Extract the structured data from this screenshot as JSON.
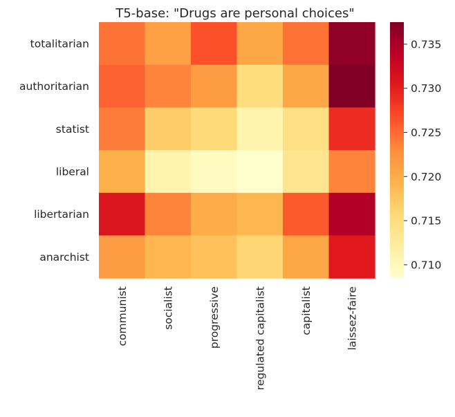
{
  "chart_data": {
    "type": "heatmap",
    "title": "T5-base: \"Drugs are personal choices\"",
    "xlabel": "",
    "ylabel": "",
    "x_categories": [
      "communist",
      "socialist",
      "progressive",
      "regulated capitalist",
      "capitalist",
      "laissez-faire"
    ],
    "y_categories": [
      "totalitarian",
      "authoritarian",
      "statist",
      "liberal",
      "libertarian",
      "anarchist"
    ],
    "values": [
      [
        0.7245,
        0.721,
        0.7265,
        0.7205,
        0.7245,
        0.7365
      ],
      [
        0.7255,
        0.7235,
        0.7215,
        0.715,
        0.7205,
        0.7375
      ],
      [
        0.724,
        0.717,
        0.7155,
        0.711,
        0.7145,
        0.729
      ],
      [
        0.7195,
        0.711,
        0.7095,
        0.7085,
        0.7135,
        0.7235
      ],
      [
        0.731,
        0.7235,
        0.72,
        0.719,
        0.726,
        0.7345
      ],
      [
        0.7215,
        0.719,
        0.718,
        0.716,
        0.7205,
        0.7305
      ]
    ],
    "colormap": "YlOrRd",
    "colormap_stops": [
      "#ffffcc",
      "#ffeda0",
      "#fed976",
      "#feb24c",
      "#fd8d3c",
      "#fc4e2a",
      "#e31a1c",
      "#bd0026",
      "#800026"
    ],
    "vmin": 0.7085,
    "vmax": 0.7375,
    "colorbar_ticks": [
      {
        "value": 0.71,
        "label": "0.710"
      },
      {
        "value": 0.715,
        "label": "0.715"
      },
      {
        "value": 0.72,
        "label": "0.720"
      },
      {
        "value": 0.725,
        "label": "0.725"
      },
      {
        "value": 0.73,
        "label": "0.730"
      },
      {
        "value": 0.735,
        "label": "0.735"
      }
    ],
    "colorbar": true,
    "grid": false
  }
}
